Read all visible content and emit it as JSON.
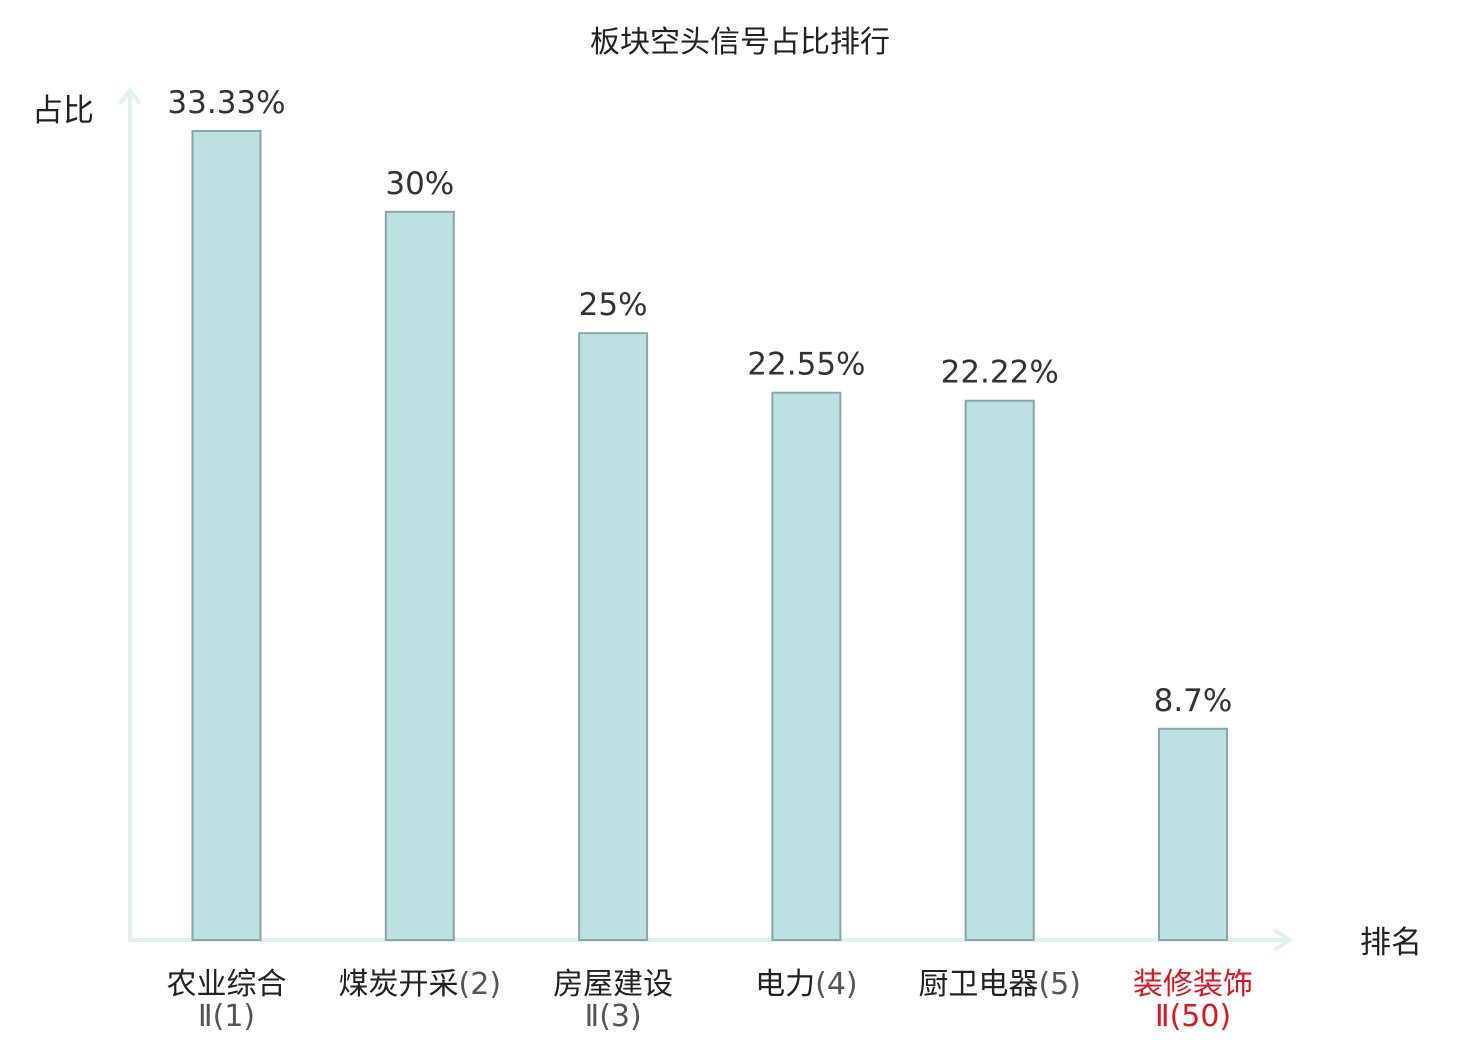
{
  "chart_data": {
    "type": "bar",
    "title": "板块空头信号占比排行",
    "ylabel": "占比",
    "xlabel": "排名",
    "categories": [
      {
        "name": "农业综合",
        "rank": "Ⅱ(1)"
      },
      {
        "name": "煤炭开采",
        "rank": "(2)"
      },
      {
        "name": "房屋建设",
        "rank": "Ⅱ(3)"
      },
      {
        "name": "电力",
        "rank": "(4)"
      },
      {
        "name": "厨卫电器",
        "rank": "(5)"
      },
      {
        "name": "装修装饰",
        "rank": "Ⅱ(50)"
      }
    ],
    "values": [
      33.33,
      30,
      25,
      22.55,
      22.22,
      8.7
    ],
    "value_labels": [
      "33.33%",
      "30%",
      "25%",
      "22.55%",
      "22.22%",
      "8.7%"
    ],
    "highlight_index": 5,
    "ylim": [
      0,
      33.33
    ],
    "grid": false,
    "colors": {
      "bar_fill": "#bde0e2",
      "bar_stroke": "#8aa5a6",
      "axis": "#e0f2ef",
      "highlight_text": "#e0141e"
    }
  }
}
